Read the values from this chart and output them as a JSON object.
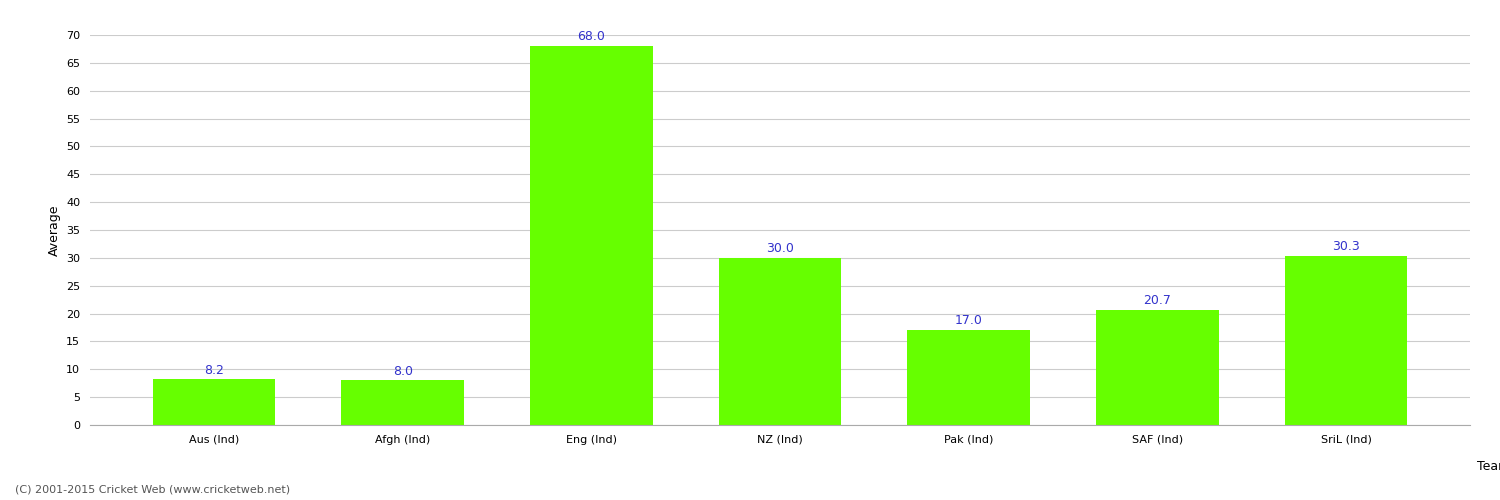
{
  "categories": [
    "Aus (Ind)",
    "Afgh (Ind)",
    "Eng (Ind)",
    "NZ (Ind)",
    "Pak (Ind)",
    "SAF (Ind)",
    "SriL (Ind)"
  ],
  "values": [
    8.2,
    8.0,
    68.0,
    30.0,
    17.0,
    20.7,
    30.3
  ],
  "bar_color": "#66ff00",
  "bar_edgecolor": "#66ff00",
  "value_label_color": "#3333cc",
  "value_label_fontsize": 9,
  "xlabel": "Team",
  "ylabel": "Average",
  "ylim": [
    0,
    70
  ],
  "yticks": [
    0,
    5,
    10,
    15,
    20,
    25,
    30,
    35,
    40,
    45,
    50,
    55,
    60,
    65,
    70
  ],
  "background_color": "#ffffff",
  "grid_color": "#cccccc",
  "footer_text": "(C) 2001-2015 Cricket Web (www.cricketweb.net)",
  "footer_fontsize": 8,
  "footer_color": "#555555",
  "axis_label_fontsize": 9,
  "tick_fontsize": 8,
  "bar_width": 0.65
}
